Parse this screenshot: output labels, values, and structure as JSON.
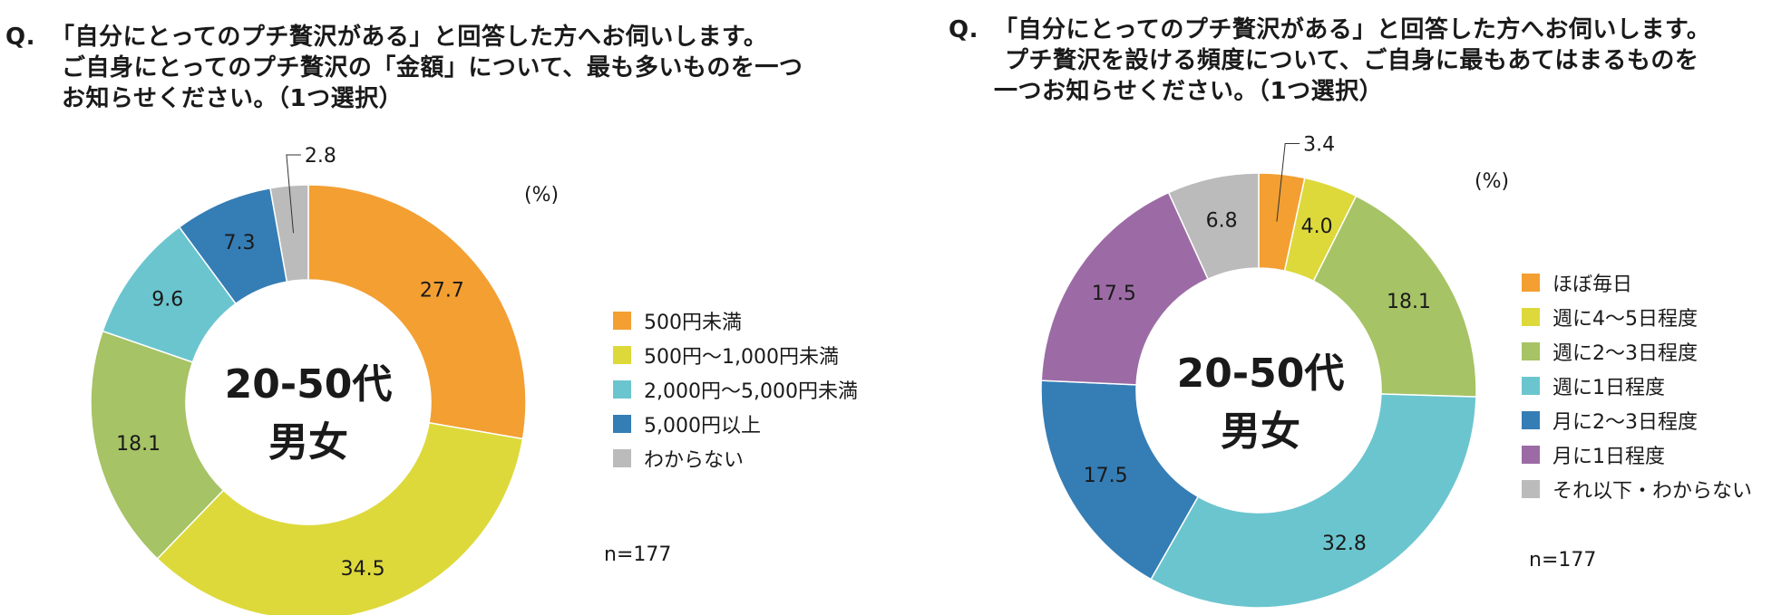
{
  "left": {
    "question": {
      "q_mark": "Q.",
      "lines": [
        "「自分にとってのプチ贅沢がある」と回答した方へお伺いします。",
        "ご自身にとってのプチ贅沢の「金額」について、最も多いものを一つ",
        "お知らせください。（1つ選択）"
      ]
    },
    "center_label": {
      "line1": "20-50代",
      "line2": "男女"
    },
    "unit": "(%)",
    "n_label": "n=177",
    "legend": [
      {
        "label": "500円未満",
        "color": "#F39F32"
      },
      {
        "label": "500円〜1,000円未満",
        "color": "#DDD93B"
      },
      {
        "label": "2,000円〜5,000円未満",
        "color": "#6BC5CF"
      },
      {
        "label": "5,000円以上",
        "color": "#357DB5"
      },
      {
        "label": "わからない",
        "color": "#BBBBBB"
      }
    ]
  },
  "right": {
    "question": {
      "q_mark": "Q.",
      "lines": [
        "「自分にとってのプチ贅沢がある」と回答した方へお伺いします。",
        "プチ贅沢を設ける頻度について、ご自身に最もあてはまるものを",
        "一つお知らせください。（1つ選択）"
      ]
    },
    "center_label": {
      "line1": "20-50代",
      "line2": "男女"
    },
    "unit": "(%)",
    "n_label": "n=177",
    "legend": [
      {
        "label": "ほぼ毎日",
        "color": "#F39F32"
      },
      {
        "label": "週に4〜5日程度",
        "color": "#DDD93B"
      },
      {
        "label": "週に2〜3日程度",
        "color": "#A6C365"
      },
      {
        "label": "週に1日程度",
        "color": "#6BC5CF"
      },
      {
        "label": "月に2〜3日程度",
        "color": "#357DB5"
      },
      {
        "label": "月に1日程度",
        "color": "#9C6BA5"
      },
      {
        "label": "それ以下・わからない",
        "color": "#BBBBBB"
      }
    ]
  },
  "chart_data": [
    {
      "type": "pie",
      "donut": true,
      "unit": "%",
      "start": "top, clockwise",
      "slices": [
        {
          "label": "500円未満",
          "value": 27.7,
          "color": "#F39F32"
        },
        {
          "label": "500円〜1,000円未満",
          "value": 34.5,
          "color": "#DDD93B"
        },
        {
          "label": "",
          "value": 18.1,
          "color": "#A6C365"
        },
        {
          "label": "2,000円〜5,000円未満",
          "value": 9.6,
          "color": "#6BC5CF"
        },
        {
          "label": "5,000円以上",
          "value": 7.3,
          "color": "#357DB5"
        },
        {
          "label": "わからない",
          "value": 2.8,
          "color": "#BBBBBB"
        }
      ]
    },
    {
      "type": "pie",
      "donut": true,
      "unit": "%",
      "start": "top, clockwise",
      "slices": [
        {
          "label": "ほぼ毎日",
          "value": 3.4,
          "color": "#F39F32"
        },
        {
          "label": "週に4〜5日程度",
          "value": 4.0,
          "color": "#DDD93B"
        },
        {
          "label": "週に2〜3日程度",
          "value": 18.1,
          "color": "#A6C365"
        },
        {
          "label": "週に1日程度",
          "value": 32.8,
          "color": "#6BC5CF"
        },
        {
          "label": "月に2〜3日程度",
          "value": 17.5,
          "color": "#357DB5"
        },
        {
          "label": "月に1日程度",
          "value": 17.5,
          "color": "#9C6BA5"
        },
        {
          "label": "それ以下・わからない",
          "value": 6.8,
          "color": "#BBBBBB"
        }
      ]
    }
  ]
}
